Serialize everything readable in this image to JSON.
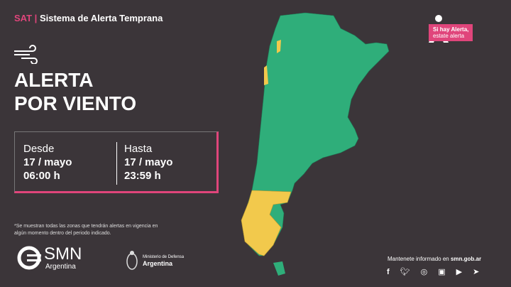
{
  "header": {
    "sat": "SAT",
    "separator": "|",
    "system": "Sistema de Alerta Temprana"
  },
  "alert": {
    "icon": "wind-icon",
    "line1": "ALERTA",
    "line2": "POR VIENTO"
  },
  "period": {
    "from_label": "Desde",
    "from_date": "17 / mayo",
    "from_time": "06:00 h",
    "to_label": "Hasta",
    "to_date": "17 / mayo",
    "to_time": "23:59 h"
  },
  "note": "*Se muestran todas las zonas que tendrán alertas en vigencia en algún momento dentro del periodo indicado.",
  "logos": {
    "smn": "SMN",
    "smn_sub": "Argentina",
    "ministry_line1": "Ministerio de Defensa",
    "ministry_line2": "Argentina"
  },
  "badge": {
    "line1": "Si hay Alerta,",
    "line2": "estate alerta"
  },
  "footer": {
    "follow": "Mantenete informado en ",
    "site": "smn.gob.ar",
    "social": [
      "facebook-icon",
      "twitter-icon",
      "instagram-icon",
      "igtv-icon",
      "youtube-icon",
      "telegram-icon"
    ]
  },
  "map": {
    "colors": {
      "no_alert": "#2fae7a",
      "yellow": "#f2c94c"
    }
  }
}
